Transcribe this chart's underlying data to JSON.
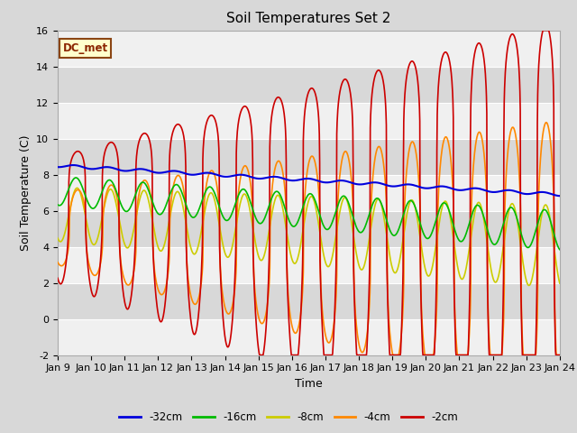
{
  "title": "Soil Temperatures Set 2",
  "xlabel": "Time",
  "ylabel": "Soil Temperature (C)",
  "ylim": [
    -2,
    16
  ],
  "xlim": [
    0,
    360
  ],
  "x_tick_labels": [
    "Jan 9",
    "Jan 10",
    "Jan 11",
    "Jan 12",
    "Jan 13",
    "Jan 14",
    "Jan 15",
    "Jan 16",
    "Jan 17",
    "Jan 18",
    "Jan 19",
    "Jan 20",
    "Jan 21",
    "Jan 22",
    "Jan 23",
    "Jan 24"
  ],
  "series_colors": {
    "-32cm": "#0000dd",
    "-16cm": "#00bb00",
    "-8cm": "#cccc00",
    "-4cm": "#ff8800",
    "-2cm": "#cc0000"
  },
  "legend_labels": [
    "-32cm",
    "-16cm",
    "-8cm",
    "-4cm",
    "-2cm"
  ],
  "legend_colors": [
    "#0000dd",
    "#00bb00",
    "#cccc00",
    "#ff8800",
    "#cc0000"
  ],
  "dc_met_label": "DC_met",
  "bg_dark": "#d8d8d8",
  "bg_light": "#f0f0f0",
  "title_fontsize": 11,
  "axis_fontsize": 9,
  "tick_fontsize": 8
}
